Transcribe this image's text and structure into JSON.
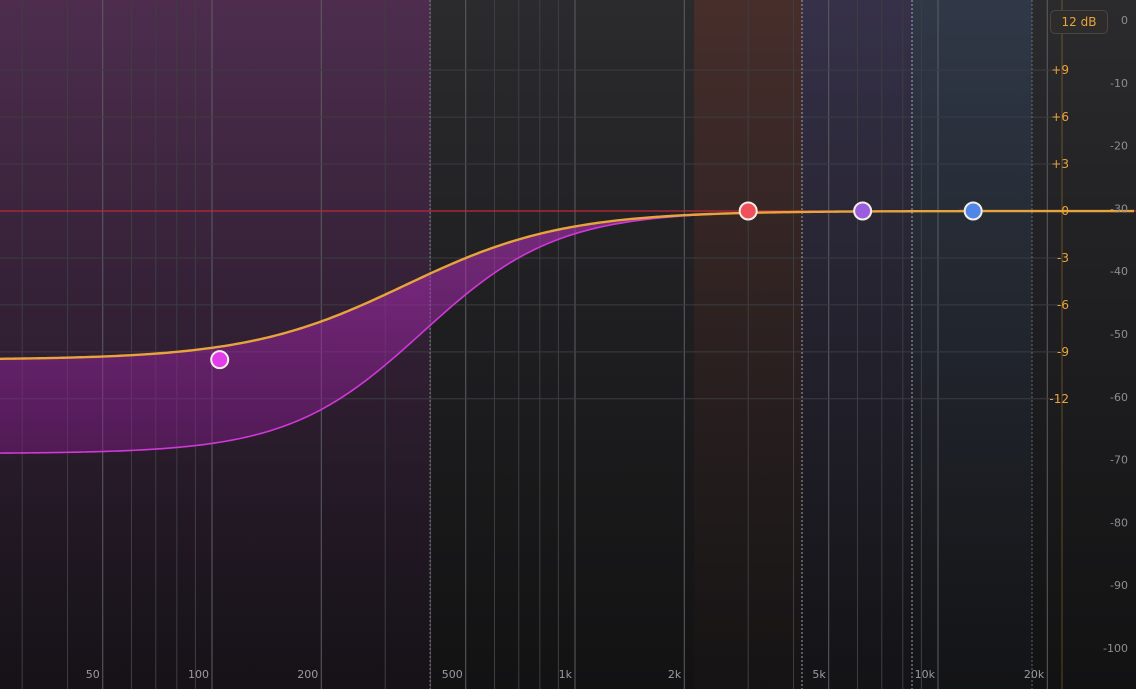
{
  "display": {
    "range_button_label": "12 dB",
    "gain_labels": [
      "+9",
      "+6",
      "+3",
      "0",
      "-3",
      "-6",
      "-9",
      "-12"
    ],
    "db_labels": [
      "0",
      "-10",
      "-20",
      "-30",
      "-40",
      "-50",
      "-60",
      "-70",
      "-80",
      "-90",
      "-100"
    ],
    "freq_labels": [
      "50",
      "100",
      "200",
      "500",
      "1k",
      "2k",
      "5k",
      "10k",
      "20k"
    ]
  },
  "bands": [
    {
      "id": "band-1",
      "type": "low-shelf",
      "frequency_hz": 105,
      "gain_db": -9.5,
      "dynamic_gain_db": -15.5,
      "color": "#e03ee8"
    },
    {
      "id": "band-2",
      "type": "bell",
      "frequency_hz": 3000,
      "gain_db": 0,
      "color": "#f0505a"
    },
    {
      "id": "band-3",
      "type": "bell",
      "frequency_hz": 6200,
      "gain_db": 0,
      "color": "#9b5de0"
    },
    {
      "id": "band-4",
      "type": "bell",
      "frequency_hz": 12500,
      "gain_db": 0,
      "color": "#4f86e8"
    }
  ],
  "colors": {
    "curve": "#e8a43c",
    "zero_line": "#c0283a",
    "gain_scale": "#e8a43c",
    "db_scale": "#8e8e92"
  }
}
